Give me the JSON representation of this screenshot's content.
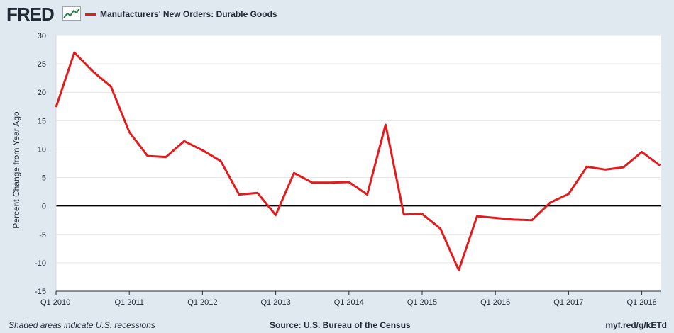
{
  "brand": {
    "logo_text": "FRED"
  },
  "chart_data": {
    "type": "line",
    "series": [
      {
        "name": "Manufacturers' New Orders: Durable Goods",
        "color": "#e41a1c",
        "values": [
          17.4,
          27.0,
          23.7,
          21.0,
          13.0,
          8.8,
          8.6,
          11.4,
          9.8,
          7.9,
          2.0,
          2.3,
          -1.6,
          5.8,
          4.1,
          4.1,
          4.2,
          2.0,
          14.3,
          -1.5,
          -1.4,
          -4.0,
          -11.3,
          -1.8,
          -2.1,
          -2.4,
          -2.5,
          0.6,
          2.1,
          6.9,
          6.4,
          6.8,
          9.5,
          7.1
        ]
      }
    ],
    "x_start": "Q1 2010",
    "x_frequency": "quarterly",
    "x_tick_labels": [
      "Q1 2010",
      "Q1 2011",
      "Q1 2012",
      "Q1 2013",
      "Q1 2014",
      "Q1 2015",
      "Q1 2016",
      "Q1 2017",
      "Q1 2018"
    ],
    "y_ticks": [
      30,
      25,
      20,
      15,
      10,
      5,
      0,
      -5,
      -10,
      -15
    ],
    "ylim": [
      -15,
      30
    ],
    "ylabel": "Percent Change from Year Ago",
    "xlabel": "",
    "zero_line": true,
    "grid": "horizontal",
    "legend_position": "top-left"
  },
  "footer": {
    "recession_note": "Shaded areas indicate U.S. recessions",
    "source": "Source: U.S. Bureau of the Census",
    "short_url": "myf.red/g/kETd"
  }
}
